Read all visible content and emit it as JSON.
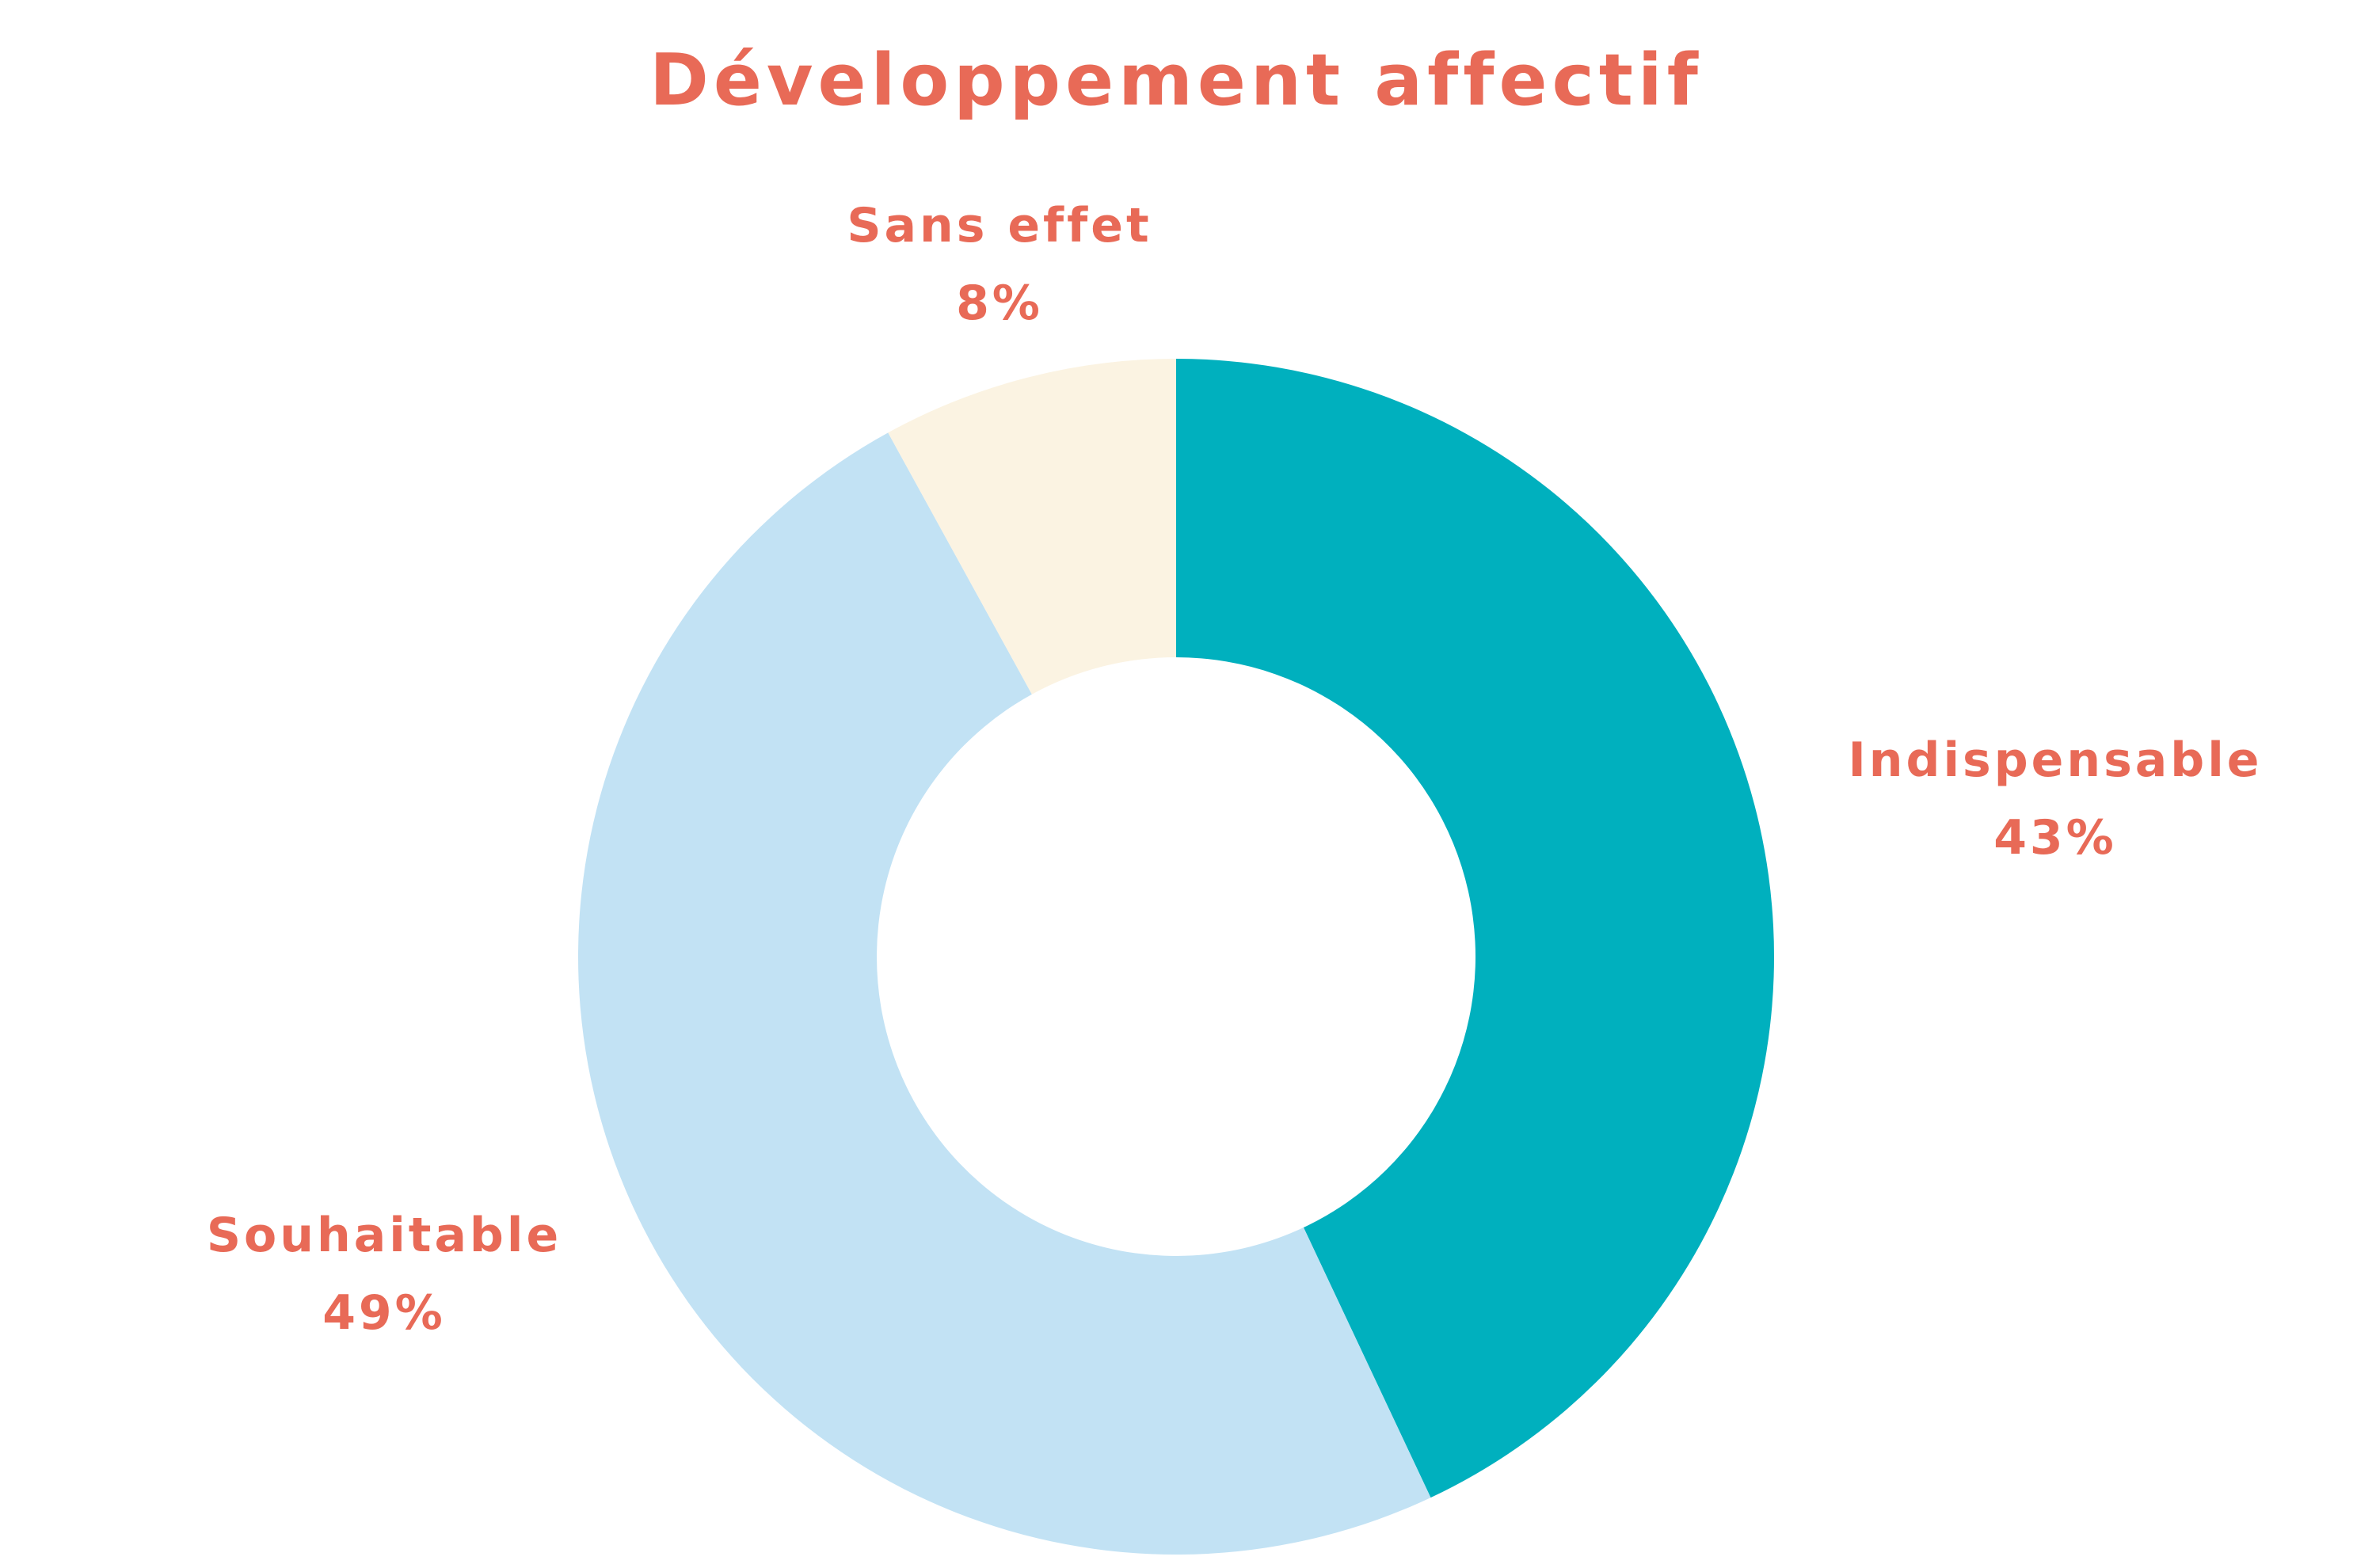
{
  "chart_data": {
    "type": "pie",
    "donut": true,
    "title": "Développement affectif",
    "categories": [
      "Indispensable",
      "Souhaitable",
      "Sans effet"
    ],
    "values": [
      43,
      49,
      8
    ],
    "labels": [
      "43%",
      "49%",
      "8%"
    ],
    "colors": [
      "#00B0BE",
      "#C2E2F4",
      "#FBF3E2"
    ],
    "label_color": "#E86A57",
    "legend": "none"
  }
}
